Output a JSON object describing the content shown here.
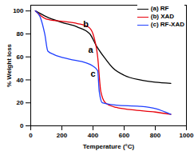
{
  "chart_data": {
    "type": "line",
    "x_label": "Temperature (°C)",
    "y_label": "% Weight loss",
    "xlim": [
      0,
      1000
    ],
    "xticks": [
      0,
      200,
      400,
      600,
      800,
      1000
    ],
    "ylim": [
      0,
      105
    ],
    "yticks": [
      0,
      20,
      40,
      60,
      80,
      100
    ],
    "legend": "top-right",
    "series": [
      {
        "name": "(a) RF",
        "color": "#000000",
        "x": [
          30,
          100,
          200,
          300,
          380,
          420,
          470,
          530,
          600,
          700,
          800,
          900
        ],
        "values": [
          100,
          95,
          90,
          86,
          80,
          70,
          60,
          50,
          44,
          40,
          38,
          37
        ]
      },
      {
        "name": "(b) XAD",
        "color": "#e8000b",
        "x": [
          30,
          100,
          200,
          300,
          370,
          400,
          430,
          450,
          480,
          550,
          650,
          800,
          900
        ],
        "values": [
          100,
          93,
          91,
          89,
          86,
          80,
          60,
          30,
          20,
          16,
          14,
          12,
          10
        ]
      },
      {
        "name": "(c) RF-XAD",
        "color": "#1f3fff",
        "x": [
          30,
          60,
          90,
          110,
          150,
          250,
          350,
          400,
          430,
          440,
          460,
          550,
          700,
          800,
          900
        ],
        "values": [
          100,
          95,
          80,
          65,
          62,
          58,
          55,
          52,
          48,
          30,
          20,
          18,
          17,
          15,
          10
        ]
      }
    ],
    "annotations": [
      {
        "text": "a",
        "x": 385,
        "y": 66
      },
      {
        "text": "b",
        "x": 355,
        "y": 88
      },
      {
        "text": "c",
        "x": 400,
        "y": 45
      }
    ]
  }
}
